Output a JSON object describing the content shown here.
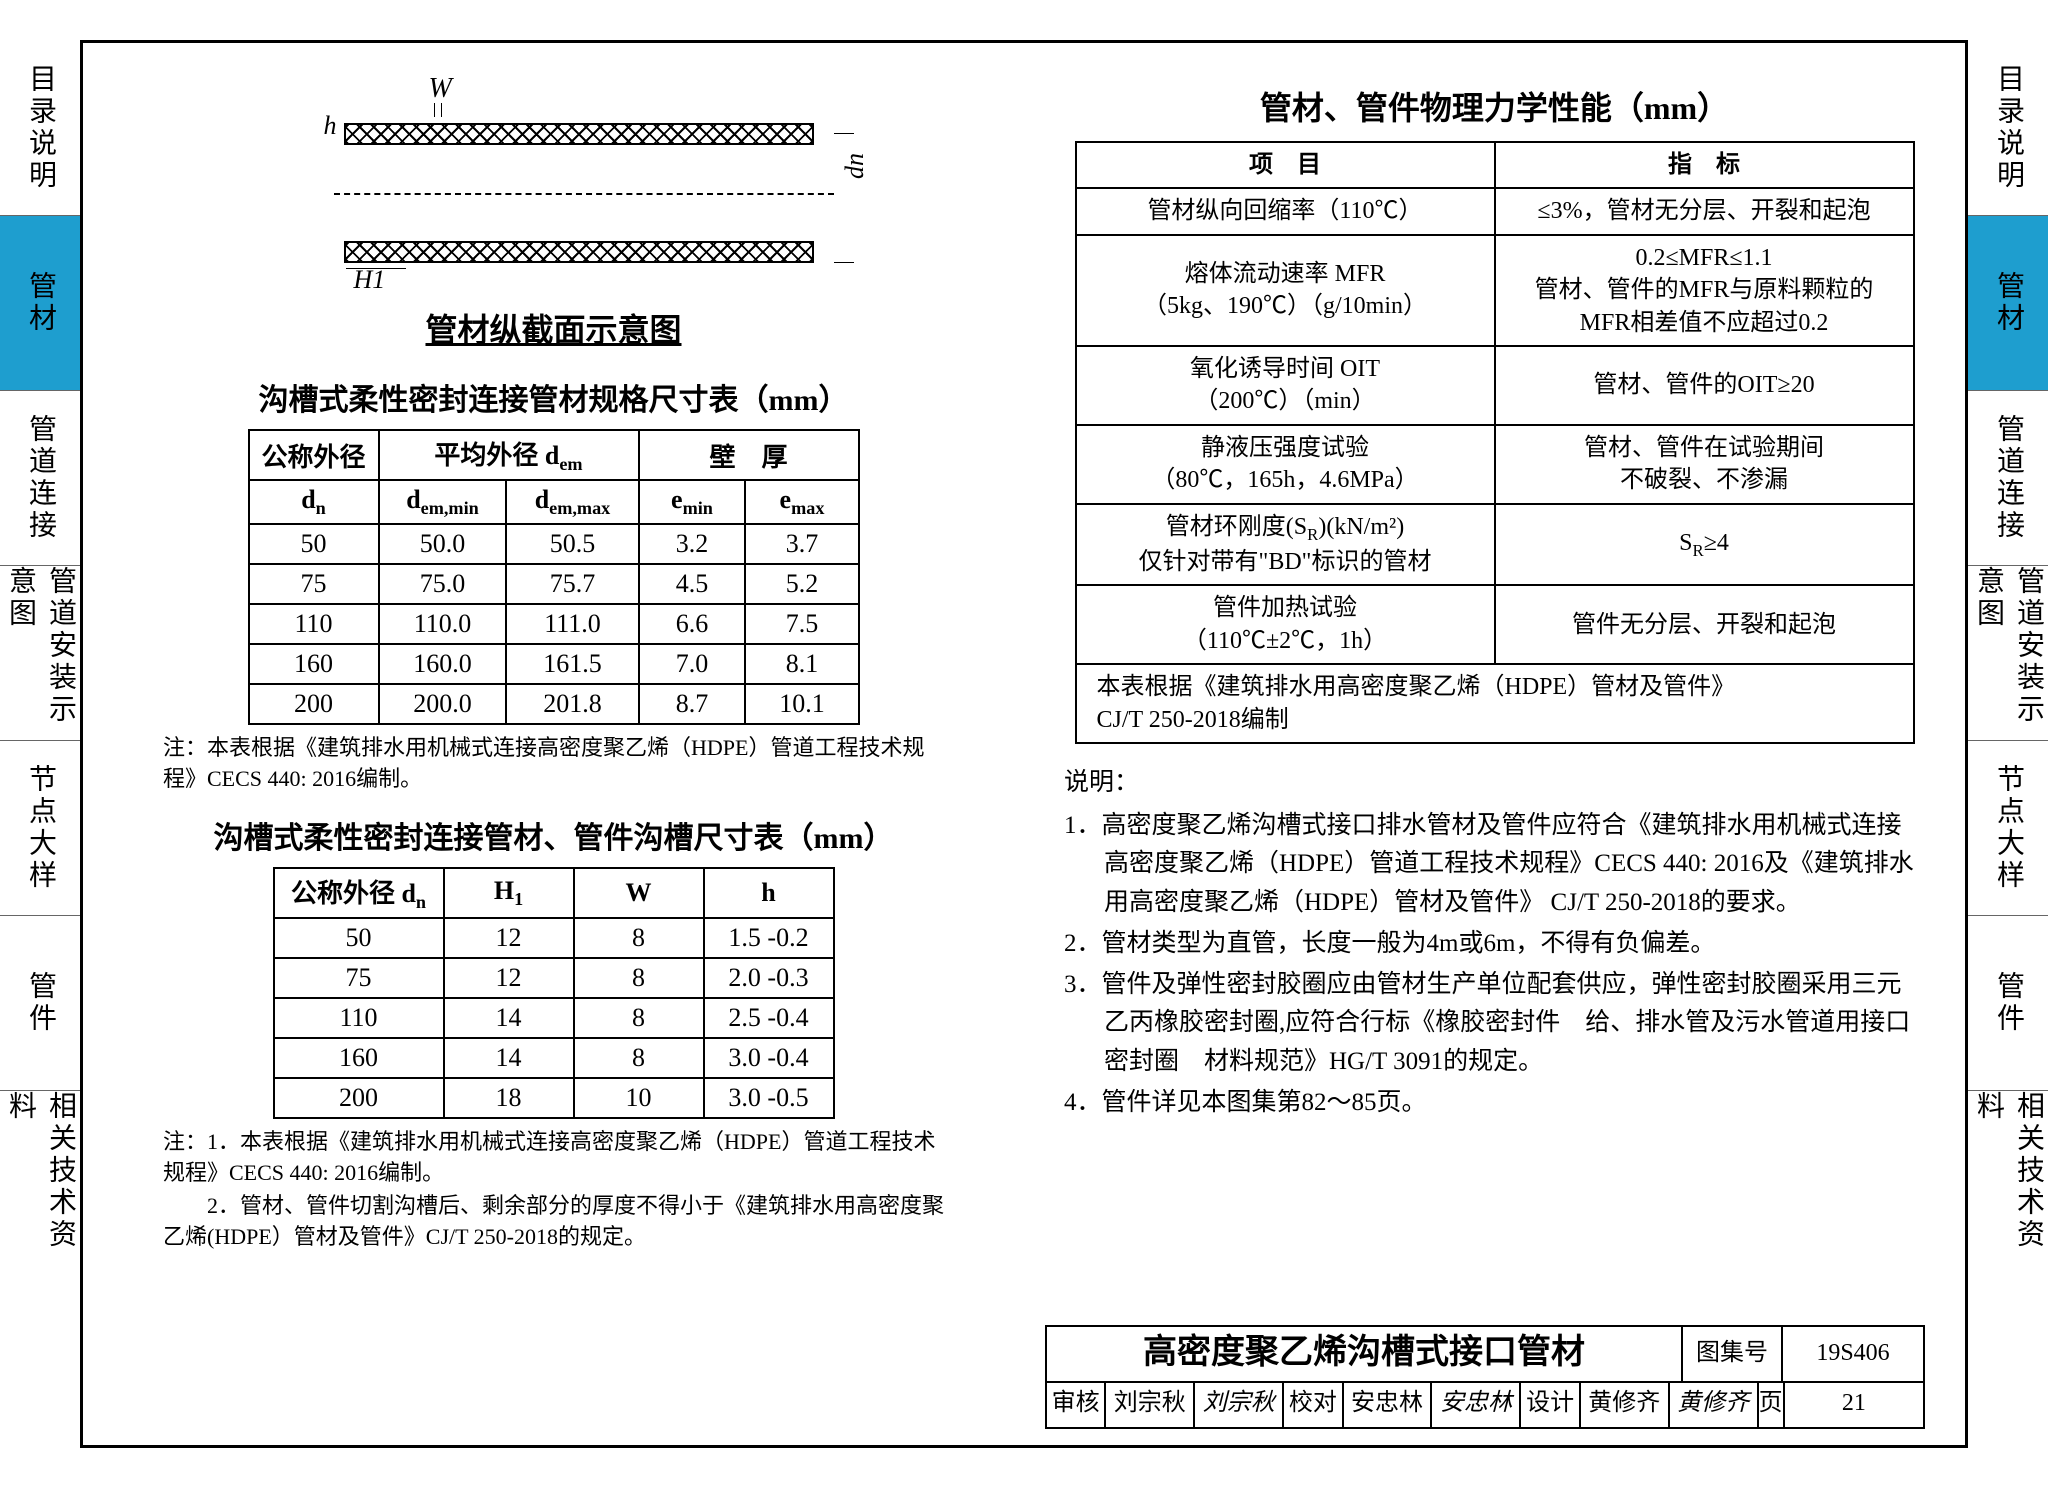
{
  "tabs": [
    "目录说明",
    "管材",
    "管道连接",
    "管道安装示意图",
    "节点大样",
    "管件",
    "相关技术资料"
  ],
  "active_tab_index": 1,
  "colors": {
    "tab_active": "#1e9ecf",
    "border": "#000000",
    "text": "#000000"
  },
  "diagram": {
    "labels": {
      "W": "W",
      "h": "h",
      "H1": "H1",
      "dn": "dn"
    },
    "title": "管材纵截面示意图"
  },
  "spec_table": {
    "title": "沟槽式柔性密封连接管材规格尺寸表（mm）",
    "head1": [
      "公称外径",
      "平均外径 d<sub>em</sub>",
      "壁　厚"
    ],
    "head2": [
      "d<sub>n</sub>",
      "d<sub>em,min</sub>",
      "d<sub>em,max</sub>",
      "e<sub>min</sub>",
      "e<sub>max</sub>"
    ],
    "rows": [
      [
        "50",
        "50.0",
        "50.5",
        "3.2",
        "3.7"
      ],
      [
        "75",
        "75.0",
        "75.7",
        "4.5",
        "5.2"
      ],
      [
        "110",
        "110.0",
        "111.0",
        "6.6",
        "7.5"
      ],
      [
        "160",
        "160.0",
        "161.5",
        "7.0",
        "8.1"
      ],
      [
        "200",
        "200.0",
        "201.8",
        "8.7",
        "10.1"
      ]
    ],
    "note": "注：本表根据《建筑排水用机械式连接高密度聚乙烯（HDPE）管道工程技术规程》CECS 440: 2016编制。"
  },
  "groove_table": {
    "title": "沟槽式柔性密封连接管材、管件沟槽尺寸表（mm）",
    "head": [
      "公称外径 d<sub>n</sub>",
      "H<sub>1</sub>",
      "W",
      "h"
    ],
    "rows": [
      [
        "50",
        "12",
        "8",
        "1.5 -0.2"
      ],
      [
        "75",
        "12",
        "8",
        "2.0 -0.3"
      ],
      [
        "110",
        "14",
        "8",
        "2.5 -0.4"
      ],
      [
        "160",
        "14",
        "8",
        "3.0 -0.4"
      ],
      [
        "200",
        "18",
        "10",
        "3.0 -0.5"
      ]
    ],
    "notes": [
      "注：1．本表根据《建筑排水用机械式连接高密度聚乙烯（HDPE）管道工程技术规程》CECS 440: 2016编制。",
      "　　2．管材、管件切割沟槽后、剩余部分的厚度不得小于《建筑排水用高密度聚乙烯(HDPE）管材及管件》CJ/T 250-2018的规定。"
    ]
  },
  "perf_table": {
    "title": "管材、管件物理力学性能（mm）",
    "head": [
      "项　目",
      "指　标"
    ],
    "rows": [
      [
        "管材纵向回缩率（110℃）",
        "≤3%，管材无分层、开裂和起泡"
      ],
      [
        "熔体流动速率 MFR\n（5kg、190℃）（g/10min）",
        "0.2≤MFR≤1.1\n管材、管件的MFR与原料颗粒的\nMFR相差值不应超过0.2"
      ],
      [
        "氧化诱导时间 OIT\n（200℃）（min）",
        "管材、管件的OIT≥20"
      ],
      [
        "静液压强度试验\n（80℃，165h，4.6MPa）",
        "管材、管件在试验期间\n不破裂、不渗漏"
      ],
      [
        "管材环刚度(S<sub>R</sub>)(kN/m²)\n仅针对带有\"BD\"标识的管材",
        "S<sub>R</sub>≥4"
      ],
      [
        "管件加热试验\n（110℃±2℃，1h）",
        "管件无分层、开裂和起泡"
      ]
    ],
    "footer": "本表根据《建筑排水用高密度聚乙烯（HDPE）管材及管件》\nCJ/T 250-2018编制"
  },
  "explain": {
    "head": "说明：",
    "items": [
      "1．高密度聚乙烯沟槽式接口排水管材及管件应符合《建筑排水用机械式连接高密度聚乙烯（HDPE）管道工程技术规程》CECS 440: 2016及《建筑排水用高密度聚乙烯（HDPE）管材及管件》 CJ/T 250-2018的要求。",
      "2．管材类型为直管，长度一般为4m或6m，不得有负偏差。",
      "3．管件及弹性密封胶圈应由管材生产单位配套供应，弹性密封胶圈采用三元乙丙橡胶密封圈,应符合行标《橡胶密封件　给、排水管及污水管道用接口密封圈　材料规范》HG/T 3091的规定。",
      "4．管件详见本图集第82～85页。"
    ]
  },
  "title_block": {
    "title": "高密度聚乙烯沟槽式接口管材",
    "code_label": "图集号",
    "code": "19S406",
    "bottom": [
      {
        "l": "审核",
        "v": "刘宗秋",
        "sig": "刘宗秋"
      },
      {
        "l": "校对",
        "v": "安忠林",
        "sig": "安忠林"
      },
      {
        "l": "设计",
        "v": "黄修齐",
        "sig": "黄修齐"
      }
    ],
    "page_label": "页",
    "page": "21"
  }
}
